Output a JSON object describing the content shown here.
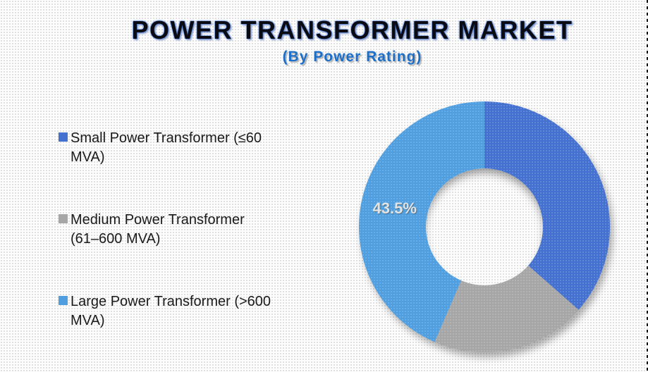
{
  "header": {
    "title": "POWER TRANSFORMER MARKET",
    "subtitle": "(By Power Rating)"
  },
  "legend": {
    "items": [
      {
        "label": "Small Power Transformer (≤60 MVA)",
        "line1": "Small Power Transformer (≤60",
        "line2": "MVA)"
      },
      {
        "label": "Medium Power Transformer (61–600 MVA)",
        "line1": "Medium Power Transformer",
        "line2": "(61–600 MVA)"
      },
      {
        "label": "Large Power Transformer (>600 MVA)",
        "line1": "Large Power Transformer (>600",
        "line2": "MVA)"
      }
    ]
  },
  "chart_data": {
    "type": "pie",
    "subtype": "donut",
    "title": "POWER TRANSFORMER MARKET",
    "subtitle": "(By Power Rating)",
    "categories": [
      "Small Power Transformer (≤60 MVA)",
      "Medium Power Transformer (61–600 MVA)",
      "Large Power Transformer (>600 MVA)"
    ],
    "values": [
      36.5,
      20.0,
      43.5
    ],
    "unit": "%",
    "colors": [
      "#4470D0",
      "#A6A6A6",
      "#4F9FE0"
    ],
    "start_angle_deg": 0,
    "direction": "clockwise",
    "legend_position": "left",
    "data_label": {
      "slice_index": 2,
      "text": "43.5%"
    }
  }
}
